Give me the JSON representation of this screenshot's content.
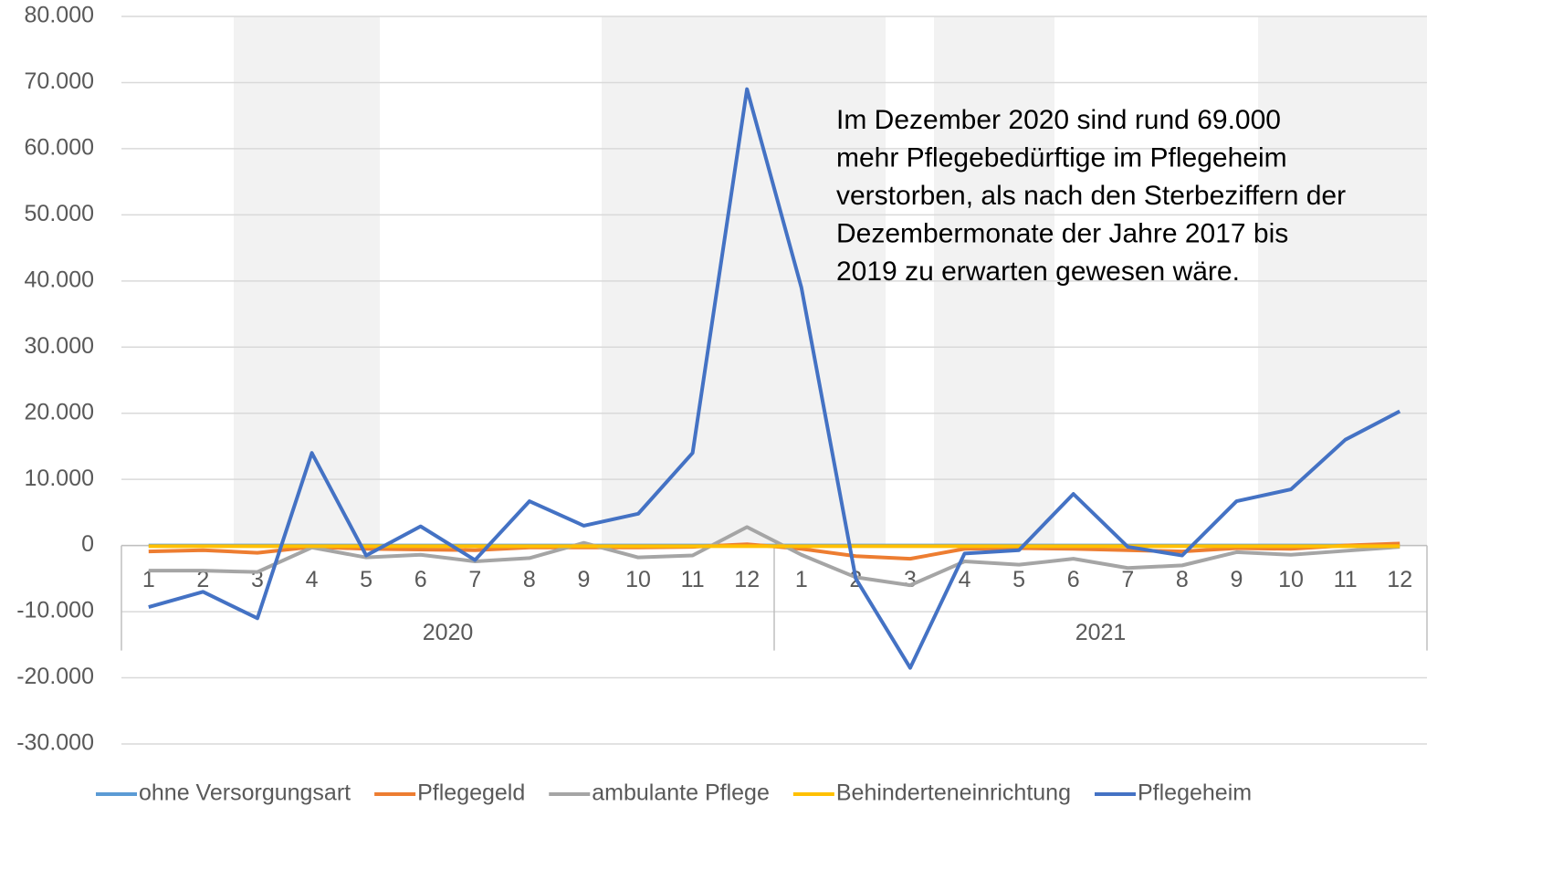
{
  "chart_data": {
    "type": "line",
    "categories": [
      "1",
      "2",
      "3",
      "4",
      "5",
      "6",
      "7",
      "8",
      "9",
      "10",
      "11",
      "12",
      "1",
      "2",
      "3",
      "4",
      "5",
      "6",
      "7",
      "8",
      "9",
      "10",
      "11",
      "12"
    ],
    "groups": [
      "2020",
      "2021"
    ],
    "ylim": [
      -30000,
      80000
    ],
    "yticks": [
      {
        "value": -30000,
        "label": "-30.000"
      },
      {
        "value": -20000,
        "label": "-20.000"
      },
      {
        "value": -10000,
        "label": "-10.000"
      },
      0,
      {
        "value": 10000,
        "label": "10.000"
      },
      {
        "value": 20000,
        "label": "20.000"
      },
      {
        "value": 30000,
        "label": "30.000"
      },
      {
        "value": 40000,
        "label": "40.000"
      },
      {
        "value": 50000,
        "label": "50.000"
      },
      {
        "value": 60000,
        "label": "60.000"
      },
      {
        "value": 70000,
        "label": "70.000"
      },
      {
        "value": 80000,
        "label": "80.000"
      }
    ],
    "grid": true,
    "legend": "bottom",
    "annotation": [
      "Im Dezember 2020 sind rund 69.000",
      "mehr Pflegebedürftige im Pflegeheim",
      "verstorben, als nach den Sterbeziffern der",
      "Dezembermonate der Jahre 2017 bis",
      "2019 zu erwarten gewesen wäre."
    ],
    "series": [
      {
        "name": "ohne Versorgungsart",
        "color": "#5b9bd5",
        "values": [
          0,
          0,
          0,
          0,
          0,
          0,
          0,
          0,
          0,
          0,
          0,
          0,
          0,
          0,
          0,
          0,
          0,
          0,
          0,
          0,
          0,
          0,
          0,
          0
        ]
      },
      {
        "name": "Pflegegeld",
        "color": "#ed7d31",
        "values": [
          -900,
          -700,
          -1100,
          -200,
          -500,
          -600,
          -700,
          -300,
          -300,
          -300,
          -200,
          200,
          -500,
          -1600,
          -2000,
          -500,
          -400,
          -500,
          -700,
          -900,
          -400,
          -500,
          0,
          300
        ]
      },
      {
        "name": "ambulante Pflege",
        "color": "#a5a5a5",
        "values": [
          -3800,
          -3800,
          -4000,
          -300,
          -1800,
          -1400,
          -2400,
          -1900,
          400,
          -1800,
          -1500,
          2800,
          -1400,
          -4800,
          -6000,
          -2400,
          -2900,
          -2000,
          -3400,
          -3000,
          -1000,
          -1400,
          -800,
          -200
        ]
      },
      {
        "name": "Behinderteneinrichtung",
        "color": "#ffc000",
        "values": [
          -100,
          -100,
          -100,
          -100,
          -100,
          -100,
          -100,
          -100,
          -100,
          -100,
          -100,
          -100,
          -100,
          -100,
          -100,
          -100,
          -100,
          -100,
          -100,
          -100,
          -100,
          -100,
          -100,
          -100
        ]
      },
      {
        "name": "Pflegeheim",
        "color": "#4472c4",
        "values": [
          -9300,
          -7000,
          -11000,
          14000,
          -1500,
          2900,
          -2200,
          6700,
          3000,
          4800,
          14000,
          69000,
          39000,
          -5000,
          -18500,
          -1200,
          -700,
          7800,
          -200,
          -1500,
          6700,
          8500,
          16000,
          20300
        ]
      }
    ]
  }
}
